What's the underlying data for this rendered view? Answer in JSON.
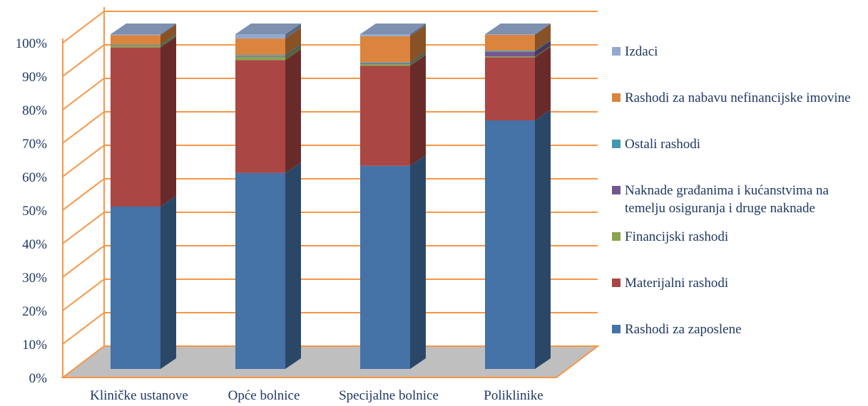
{
  "chart_data": {
    "type": "bar",
    "stacked": true,
    "percent": true,
    "three_d": true,
    "categories": [
      "Kliničke ustanove",
      "Opće bolnice",
      "Specijalne bolnice",
      "Poliklinike"
    ],
    "y_ticks": [
      "0%",
      "10%",
      "20%",
      "30%",
      "40%",
      "50%",
      "60%",
      "70%",
      "80%",
      "90%",
      "100%"
    ],
    "ylim": [
      0,
      100
    ],
    "grid": true,
    "legend_position": "right",
    "series": [
      {
        "name": "Rashodi za zaposlene",
        "color": "#4572a7",
        "values": [
          49,
          59,
          61,
          75
        ]
      },
      {
        "name": "Materijalni rashodi",
        "color": "#aa4643",
        "values": [
          48,
          34,
          30,
          19
        ]
      },
      {
        "name": "Financijski rashodi",
        "color": "#89a54e",
        "values": [
          0.5,
          1,
          0.5,
          0.3
        ]
      },
      {
        "name": "Naknade građanima i kućanstvima na temelju osiguranja i druge naknade",
        "color": "#71588f",
        "values": [
          0.1,
          0.2,
          0.2,
          1.4
        ]
      },
      {
        "name": "Ostali rashodi",
        "color": "#4198af",
        "values": [
          0.2,
          0.3,
          0.3,
          0.3
        ]
      },
      {
        "name": "Rashodi za nabavu nefinancijske imovine",
        "color": "#db843d",
        "values": [
          2.9,
          5.0,
          7.9,
          4.8
        ]
      },
      {
        "name": "Izdaci",
        "color": "#93a9cf",
        "values": [
          0.3,
          1.3,
          0.6,
          0.2
        ]
      }
    ]
  }
}
